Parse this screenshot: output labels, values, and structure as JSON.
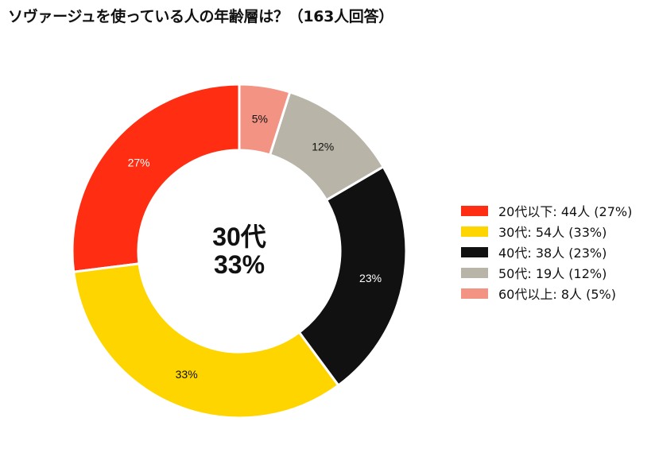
{
  "chart_data": {
    "type": "pie",
    "title": "ソヴァージュを使っている人の年齢層は？（163人回答）",
    "categories": [
      "20代以下",
      "30代",
      "40代",
      "50代",
      "60代以上"
    ],
    "values": [
      44,
      54,
      38,
      19,
      8
    ],
    "percent_labels": [
      "27%",
      "33%",
      "23%",
      "12%",
      "5%"
    ],
    "legend_labels": [
      "20代以下:  44人 (27%)",
      "30代:  54人 (33%)",
      "40代:  38人 (23%)",
      "50代:  19人 (12%)",
      "60代以上:  8人 (5%)"
    ],
    "colors": [
      "#ff2e12",
      "#ffd500",
      "#111111",
      "#b8b5a8",
      "#f39383"
    ],
    "label_colors": [
      "#ffffff",
      "#111111",
      "#ffffff",
      "#111111",
      "#111111"
    ],
    "center_label": [
      "30代",
      "33%"
    ],
    "legend_position": "right",
    "donut": true
  }
}
